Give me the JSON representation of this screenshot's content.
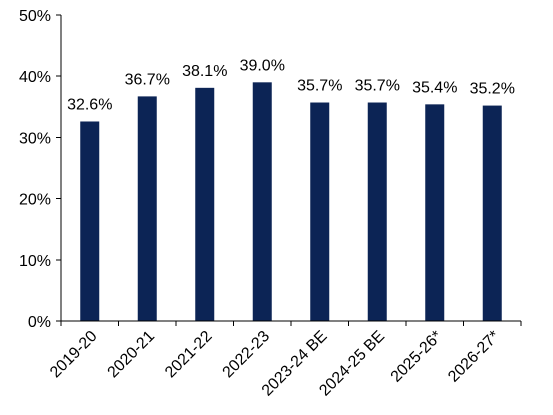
{
  "chart_data": {
    "type": "bar",
    "categories": [
      "2019-20",
      "2020-21",
      "2021-22",
      "2022-23",
      "2023-24 BE",
      "2024-25 BE",
      "2025-26*",
      "2026-27*"
    ],
    "values": [
      32.6,
      36.7,
      38.1,
      39.0,
      35.7,
      35.7,
      35.4,
      35.2
    ],
    "data_labels": [
      "32.6%",
      "36.7%",
      "38.1%",
      "39.0%",
      "35.7%",
      "35.7%",
      "35.4%",
      "35.2%"
    ],
    "y_ticks": [
      0,
      10,
      20,
      30,
      40,
      50
    ],
    "y_tick_labels": [
      "0%",
      "10%",
      "20%",
      "30%",
      "40%",
      "50%"
    ],
    "ylim": [
      0,
      50
    ],
    "grid": false,
    "legend": false,
    "bar_color": "#0c2455"
  }
}
